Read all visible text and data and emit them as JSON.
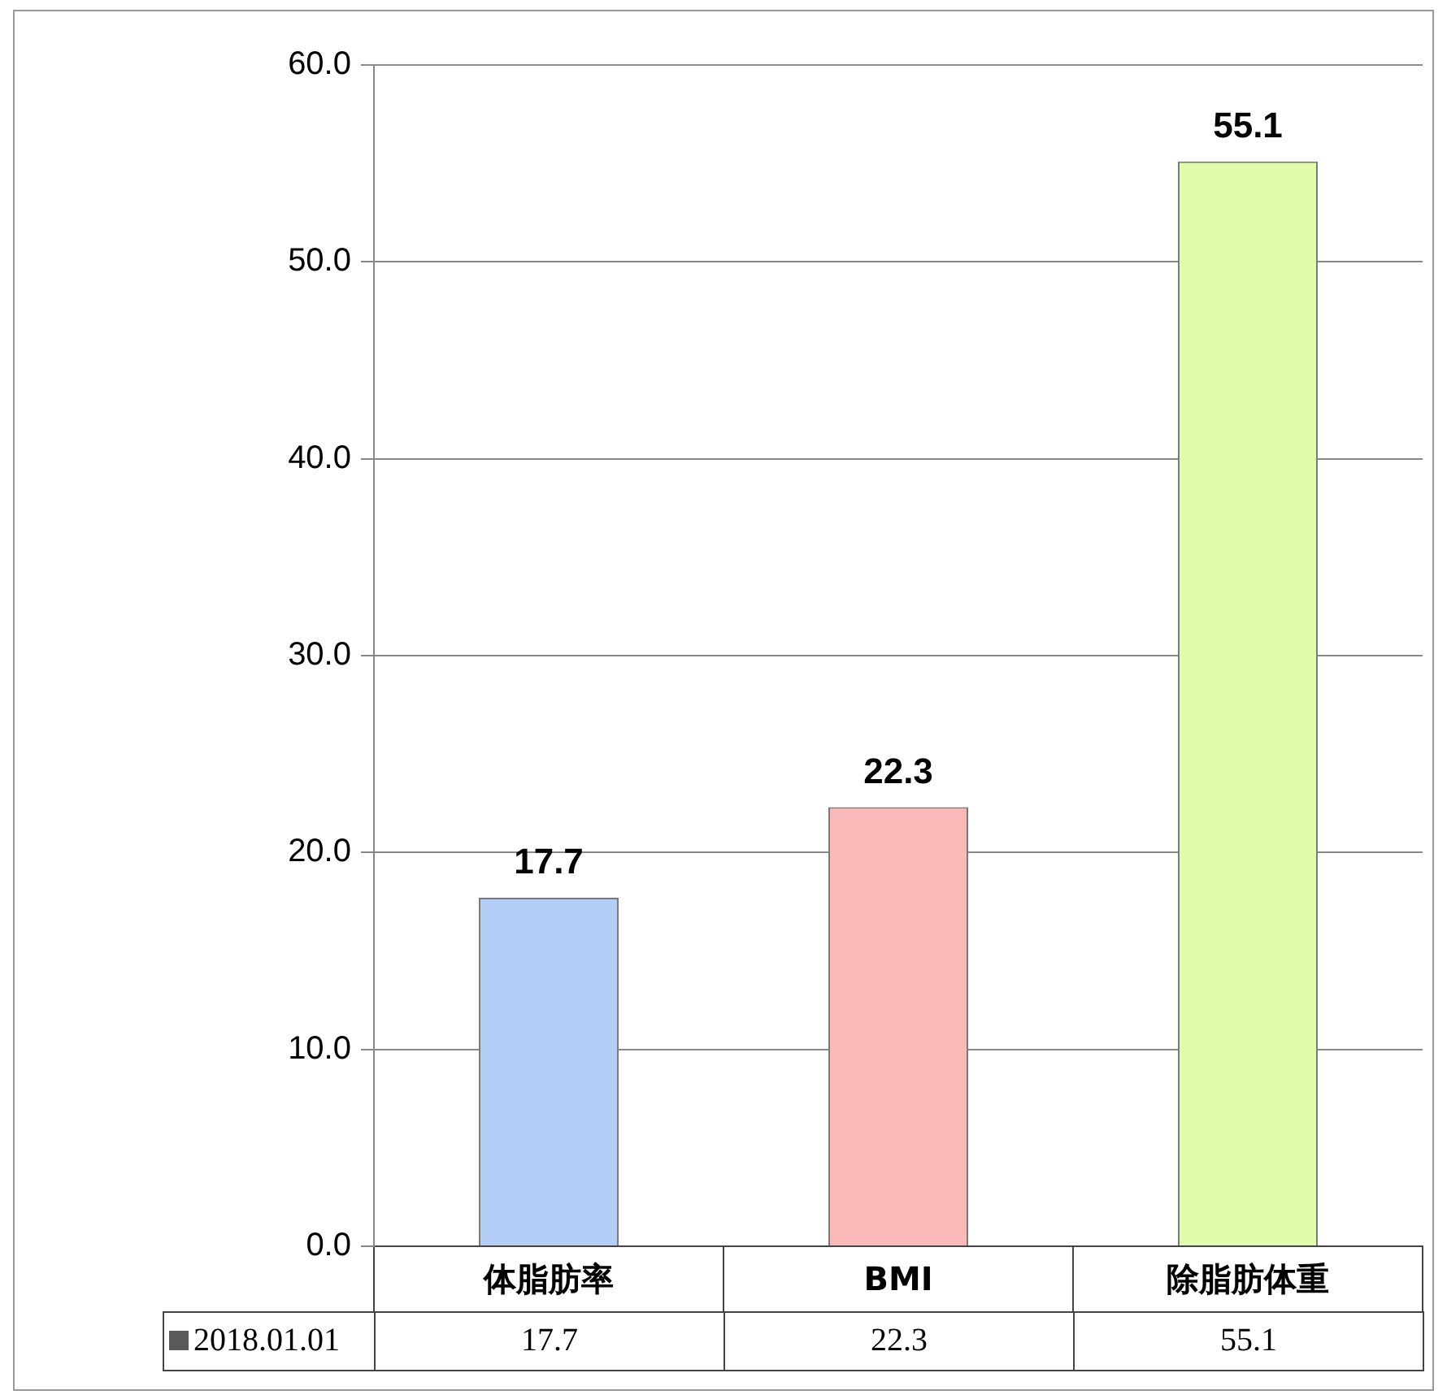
{
  "chart_data": {
    "type": "bar",
    "categories": [
      "体脂肪率",
      "BMI",
      "除脂肪体重"
    ],
    "series": [
      {
        "name": "2018.01.01",
        "color": "#595959",
        "colors": [
          "#b4cef8",
          "#fbb8b8",
          "#e0fbaa"
        ],
        "values": [
          17.7,
          22.3,
          55.1
        ]
      }
    ],
    "annotations": [
      "17.7",
      "22.3",
      "55.1"
    ],
    "ylim": [
      0,
      60
    ],
    "yticks": [
      {
        "value": 0,
        "label": "0.0"
      },
      {
        "value": 10,
        "label": "10.0"
      },
      {
        "value": 20,
        "label": "20.0"
      },
      {
        "value": 30,
        "label": "30.0"
      },
      {
        "value": 40,
        "label": "40.0"
      },
      {
        "value": 50,
        "label": "50.0"
      },
      {
        "value": 60,
        "label": "60.0"
      }
    ],
    "grid": "y",
    "data_labels": true,
    "legend": false
  }
}
